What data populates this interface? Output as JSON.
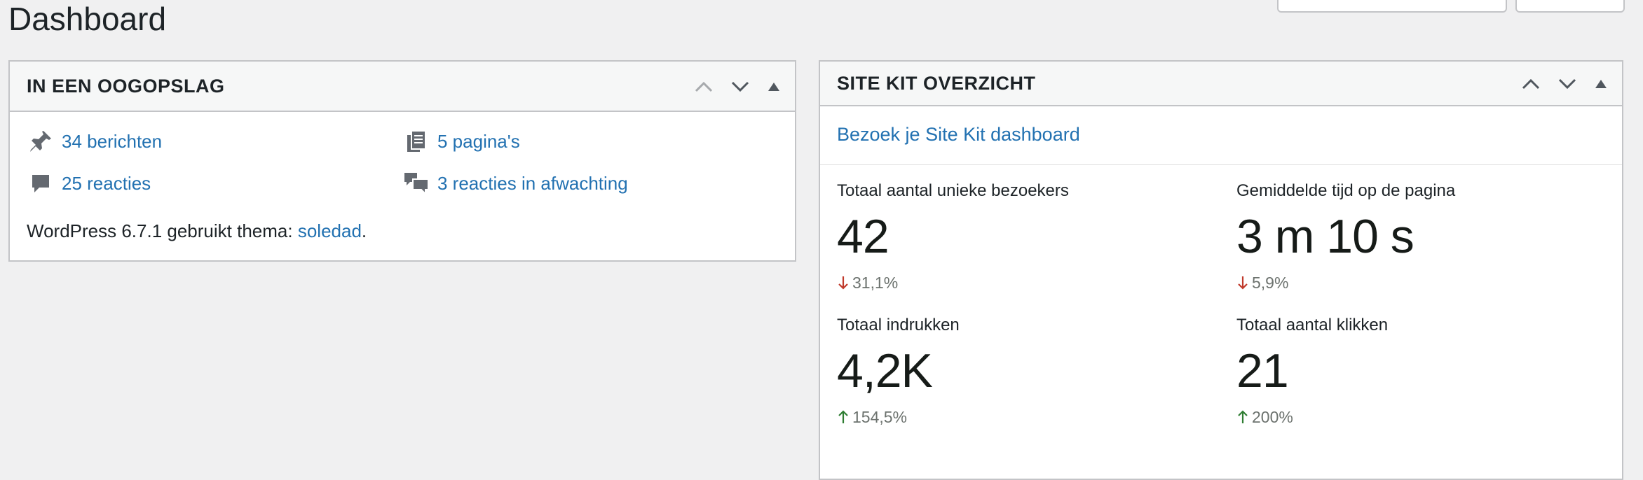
{
  "page": {
    "title": "Dashboard"
  },
  "glance": {
    "title": "IN EEN OOGOPSLAG",
    "items": [
      {
        "icon": "pushpin-icon",
        "label": "34 berichten"
      },
      {
        "icon": "pages-icon",
        "label": "5 pagina's"
      },
      {
        "icon": "comment-icon",
        "label": "25 reacties"
      },
      {
        "icon": "comments-pending-icon",
        "label": "3 reacties in afwachting"
      }
    ],
    "version_prefix": "WordPress 6.7.1 gebruikt thema: ",
    "theme_link": "soledad",
    "version_suffix": "."
  },
  "sitekit": {
    "title": "SITE KIT OVERZICHT",
    "dashboard_link": "Bezoek je Site Kit dashboard",
    "metrics": [
      {
        "label": "Totaal aantal unieke bezoekers",
        "value": "42",
        "change": "31,1%",
        "direction": "down"
      },
      {
        "label": "Gemiddelde tijd op de pagina",
        "value": "3 m 10 s",
        "change": "5,9%",
        "direction": "down"
      },
      {
        "label": "Totaal indrukken",
        "value": "4,2K",
        "change": "154,5%",
        "direction": "up"
      },
      {
        "label": "Totaal aantal klikken",
        "value": "21",
        "change": "200%",
        "direction": "up"
      }
    ]
  },
  "colors": {
    "link": "#2271b1",
    "down": "#c0392b",
    "up": "#2e7d32",
    "border": "#c3c4c7",
    "background": "#f0f0f1"
  }
}
